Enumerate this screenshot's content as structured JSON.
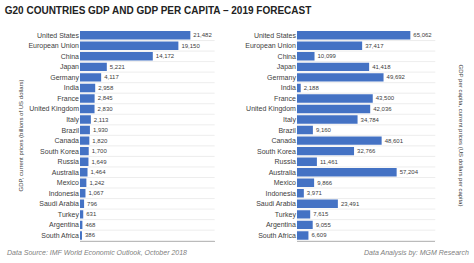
{
  "chart_data": [
    {
      "type": "bar",
      "orientation": "horizontal",
      "title": "G20 COUNTRIES GDP AND GDP PER CAPITA – 2019 FORECAST",
      "categories": [
        "United States",
        "European Union",
        "China",
        "Japan",
        "Germany",
        "India",
        "France",
        "United Kingdom",
        "Italy",
        "Brazil",
        "Canada",
        "South Korea",
        "Russia",
        "Australia",
        "Mexico",
        "Indonesia",
        "Saudi Arabia",
        "Turkey",
        "Argentina",
        "South Africa"
      ],
      "values": [
        21482,
        19150,
        14172,
        5221,
        4117,
        2958,
        2845,
        2830,
        2113,
        1930,
        1820,
        1700,
        1649,
        1464,
        1242,
        1067,
        796,
        631,
        468,
        386
      ],
      "value_labels": [
        "21,482",
        "19,150",
        "14,172",
        "5,221",
        "4,117",
        "2,958",
        "2,845",
        "2,830",
        "2,113",
        "1,930",
        "1,820",
        "1,700",
        "1,649",
        "1,464",
        "1,242",
        "1,067",
        "796",
        "631",
        "468",
        "386"
      ],
      "data_labels": true,
      "color": "#4472C4",
      "xlim": [
        0,
        26208.04
      ],
      "ylabel": "GDP, current prices (billions of US dollars)",
      "tick_labels": "y",
      "grid": true,
      "annotations": [
        "Data Source: IMF World Economic Outlook, October 2018"
      ]
    },
    {
      "type": "bar",
      "orientation": "horizontal",
      "categories": [
        "United States",
        "European Union",
        "China",
        "Japan",
        "Germany",
        "India",
        "France",
        "United Kingdom",
        "Italy",
        "Brazil",
        "Canada",
        "South Korea",
        "Russia",
        "Australia",
        "Mexico",
        "Indonesia",
        "Saudi Arabia",
        "Turkey",
        "Argentina",
        "South Africa"
      ],
      "values": [
        65062,
        37417,
        10099,
        41418,
        49692,
        2188,
        43500,
        42036,
        34784,
        9160,
        48601,
        32766,
        11461,
        57204,
        9866,
        3971,
        23491,
        7615,
        9055,
        6609
      ],
      "value_labels": [
        "65,062",
        "37,417",
        "10,099",
        "41,418",
        "49,692",
        "2,188",
        "43,500",
        "42,036",
        "34,784",
        "9,160",
        "48,601",
        "32,766",
        "11,461",
        "57,204",
        "9,866",
        "3,971",
        "23,491",
        "7,615",
        "9,055",
        "6,609"
      ],
      "data_labels": true,
      "color": "#4472C4",
      "xlim": [
        0,
        79375.64
      ],
      "ylabel": "GDP per capita, current prices (US dollars per capita)",
      "tick_labels": "y",
      "grid": true,
      "annotations": [
        "Data Analysis by: MGM Research"
      ]
    }
  ]
}
